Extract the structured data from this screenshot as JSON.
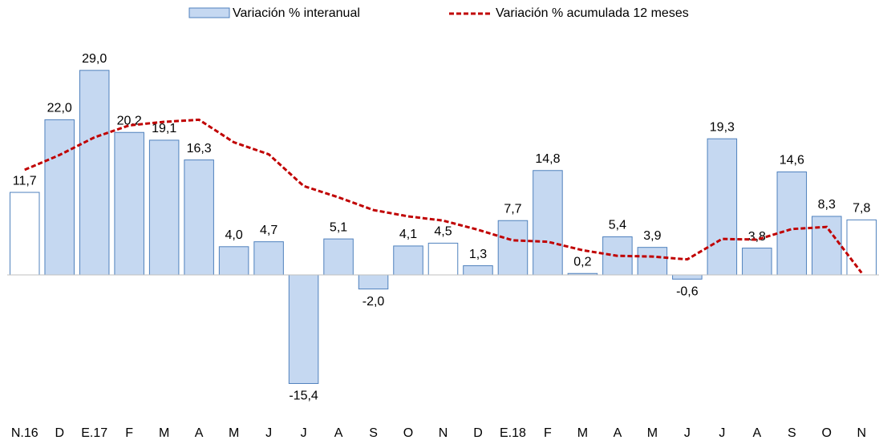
{
  "chart_data": {
    "type": "bar",
    "categories": [
      "N.16",
      "D",
      "E.17",
      "F",
      "M",
      "A",
      "M",
      "J",
      "J",
      "A",
      "S",
      "O",
      "N",
      "D",
      "E.18",
      "F",
      "M",
      "A",
      "M",
      "J",
      "J",
      "A",
      "S",
      "O",
      "N"
    ],
    "series": [
      {
        "name": "Variación % interanual",
        "type": "bar",
        "color": "#c5d8f1",
        "colors": [
          "#ffffff",
          "#c5d8f1",
          "#c5d8f1",
          "#c5d8f1",
          "#c5d8f1",
          "#c5d8f1",
          "#c5d8f1",
          "#c5d8f1",
          "#c5d8f1",
          "#c5d8f1",
          "#c5d8f1",
          "#c5d8f1",
          "#ffffff",
          "#c5d8f1",
          "#c5d8f1",
          "#c5d8f1",
          "#c5d8f1",
          "#c5d8f1",
          "#c5d8f1",
          "#c5d8f1",
          "#c5d8f1",
          "#c5d8f1",
          "#c5d8f1",
          "#c5d8f1",
          "#ffffff"
        ],
        "values": [
          11.7,
          22.0,
          29.0,
          20.2,
          19.1,
          16.3,
          4.0,
          4.7,
          -15.4,
          5.1,
          -2.0,
          4.1,
          4.5,
          1.3,
          7.7,
          14.8,
          0.2,
          5.4,
          3.9,
          -0.6,
          19.3,
          3.8,
          14.6,
          8.3,
          7.8
        ],
        "value_labels": [
          "11,7",
          "22,0",
          "29,0",
          "20,2",
          "19,1",
          "16,3",
          "4,0",
          "4,7",
          "-15,4",
          "5,1",
          "-2,0",
          "4,1",
          "4,5",
          "1,3",
          "7,7",
          "14,8",
          "0,2",
          "5,4",
          "3,9",
          "-0,6",
          "19,3",
          "3,8",
          "14,6",
          "8,3",
          "7,8"
        ]
      },
      {
        "name": "Variación % acumulada 12 meses",
        "type": "line",
        "color": "#c00000",
        "values": [
          14.9,
          17.0,
          19.5,
          21.2,
          21.7,
          22.0,
          18.8,
          17.1,
          12.6,
          11.0,
          9.2,
          8.3,
          7.7,
          6.4,
          4.9,
          4.7,
          3.5,
          2.7,
          2.6,
          2.2,
          5.1,
          5.0,
          6.5,
          6.8,
          0.3
        ]
      }
    ],
    "ylim": [
      -20,
      35
    ]
  }
}
